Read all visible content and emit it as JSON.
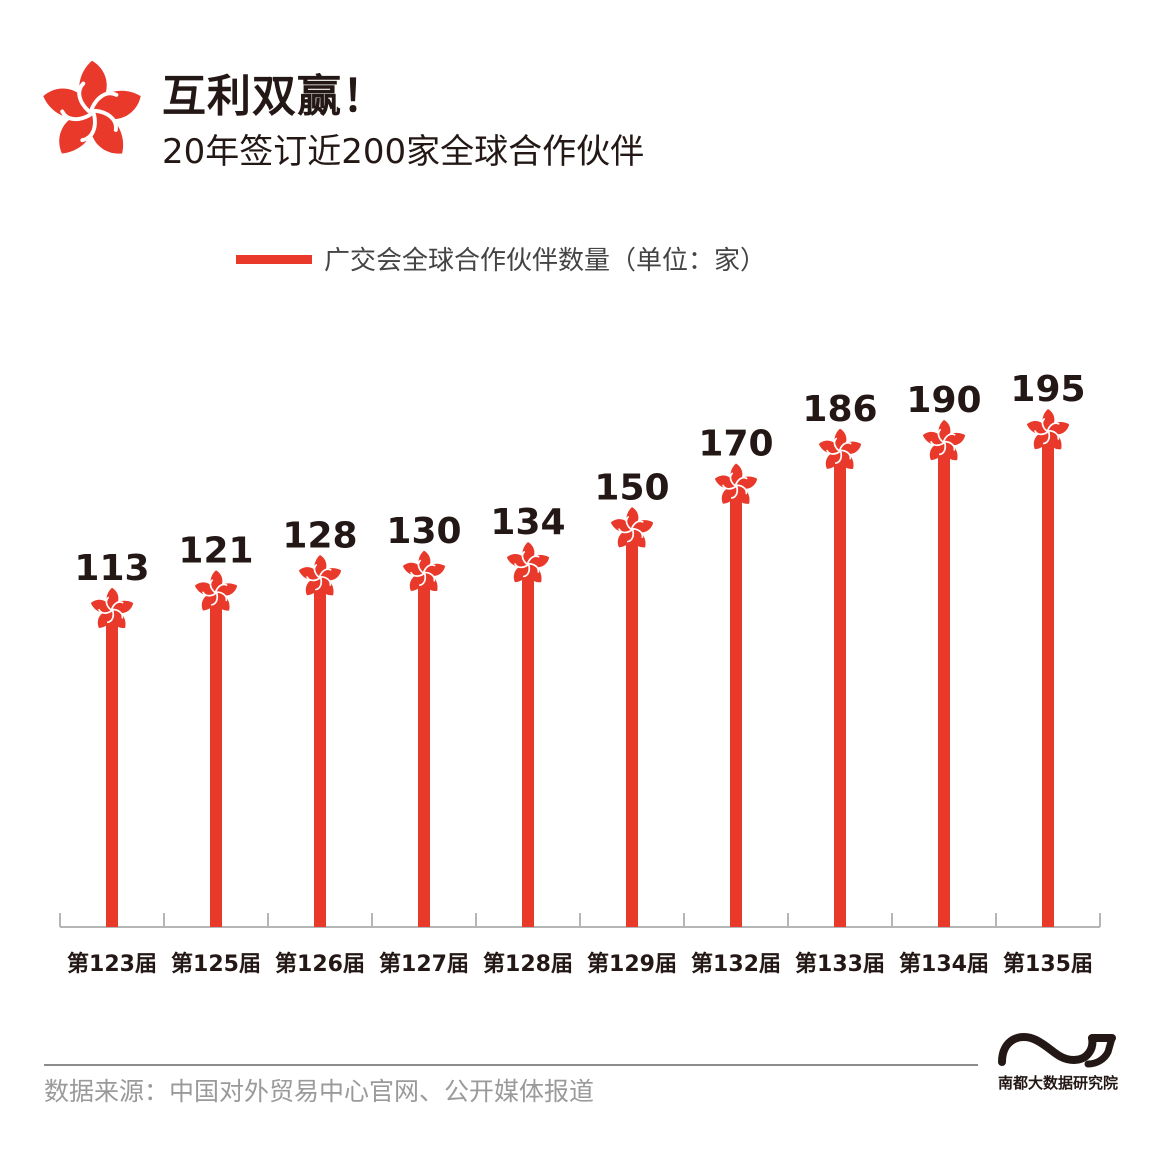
{
  "header": {
    "title": "互利双赢！",
    "subtitle": "20年签订近200家全球合作伙伴"
  },
  "legend": {
    "label": "广交会全球合作伙伴数量（单位：家）"
  },
  "colors": {
    "bar": "#e8392b",
    "text": "#231815",
    "axis": "#b5b5b5"
  },
  "icons": {
    "flower": "canton-fair-flower-logo",
    "brand": "nandu-wave-logo"
  },
  "chart_data": {
    "type": "bar",
    "categories": [
      "第123届",
      "第125届",
      "第126届",
      "第127届",
      "第128届",
      "第129届",
      "第132届",
      "第133届",
      "第134届",
      "第135届"
    ],
    "series": [
      {
        "name": "广交会全球合作伙伴数量（单位：家）",
        "values": [
          113,
          121,
          128,
          130,
          134,
          150,
          170,
          186,
          190,
          195
        ]
      }
    ],
    "ylim": [
      0,
      200
    ],
    "grid": false,
    "legend_position": "top"
  },
  "footer": {
    "source": "数据来源：中国对外贸易中心官网、公开媒体报道",
    "brand": "南都大数据研究院"
  }
}
